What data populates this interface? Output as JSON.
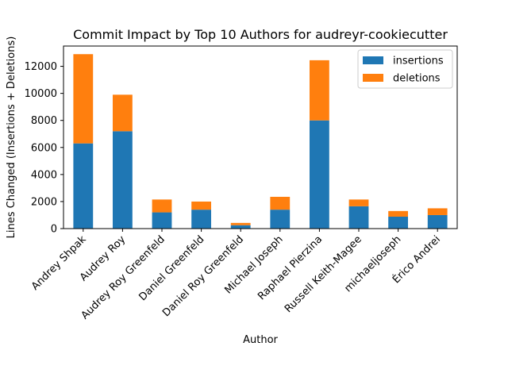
{
  "chart_data": {
    "type": "bar",
    "stacked": true,
    "title": "Commit Impact by Top 10 Authors for audreyr-cookiecutter",
    "xlabel": "Author",
    "ylabel": "Lines Changed (Insertions + Deletions)",
    "ylim": [
      0,
      13500
    ],
    "yticks": [
      0,
      2000,
      4000,
      6000,
      8000,
      10000,
      12000
    ],
    "grid": false,
    "legend_position": "top-right",
    "categories": [
      "Andrey Shpak",
      "Audrey Roy",
      "Audrey Roy Greenfeld",
      "Daniel Greenfeld",
      "Daniel Roy Greenfeld",
      "Michael Joseph",
      "Raphael Pierzina",
      "Russell Keith-Magee",
      "michaeljoseph",
      "Érico Andrei"
    ],
    "series": [
      {
        "name": "insertions",
        "color": "#1f77b4",
        "values": [
          6300,
          7200,
          1200,
          1400,
          250,
          1400,
          8000,
          1650,
          880,
          1000
        ]
      },
      {
        "name": "deletions",
        "color": "#ff7f0e",
        "values": [
          6600,
          2700,
          950,
          600,
          170,
          950,
          4450,
          500,
          420,
          500
        ]
      }
    ]
  }
}
